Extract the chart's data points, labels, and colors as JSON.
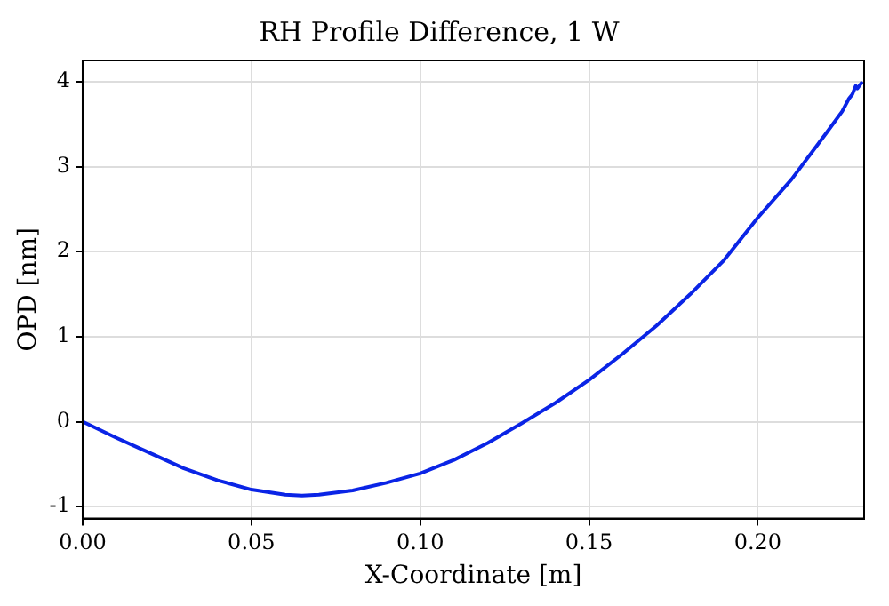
{
  "chart_data": {
    "type": "line",
    "title": "RH Profile Difference, 1 W",
    "xlabel": "X-Coordinate [m]",
    "ylabel": "OPD [nm]",
    "series": [
      {
        "color": "#0a24e6",
        "x": [
          0,
          0.01,
          0.02,
          0.03,
          0.04,
          0.05,
          0.06,
          0.065,
          0.07,
          0.08,
          0.09,
          0.1,
          0.11,
          0.12,
          0.13,
          0.14,
          0.15,
          0.16,
          0.17,
          0.18,
          0.19,
          0.2,
          0.21,
          0.22,
          0.225,
          0.227,
          0.228,
          0.229,
          0.2295,
          0.231
        ],
        "values": [
          0,
          -0.19,
          -0.37,
          -0.55,
          -0.69,
          -0.8,
          -0.86,
          -0.87,
          -0.86,
          -0.81,
          -0.72,
          -0.61,
          -0.45,
          -0.25,
          -0.02,
          0.22,
          0.49,
          0.8,
          1.13,
          1.5,
          1.9,
          2.4,
          2.85,
          3.38,
          3.65,
          3.8,
          3.85,
          3.95,
          3.92,
          4.0
        ]
      }
    ],
    "xlim": [
      0,
      0.2315
    ],
    "xticks": [
      {
        "value": 0,
        "label": "0.00"
      },
      0.05,
      {
        "value": 0.1,
        "label": "0.10"
      },
      0.15,
      {
        "value": 0.2,
        "label": "0.20"
      }
    ],
    "ylim": [
      -1.14,
      4.25
    ],
    "yticks": [
      -1,
      0,
      1,
      2,
      3,
      4
    ],
    "grid": true
  }
}
